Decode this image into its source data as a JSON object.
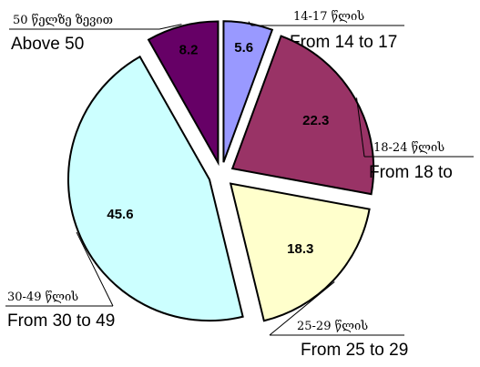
{
  "chart_data": {
    "type": "pie",
    "categories_ka": [
      "14-17 წლის",
      "18-24 წლის",
      "25-29 წლის",
      "30-49 წლის",
      "50 წელზე ზევით"
    ],
    "categories": [
      "From 14 to 17",
      "From 18 to",
      "From 25 to 29",
      "From 30 to 49",
      "Above 50"
    ],
    "values": [
      5.6,
      22.3,
      18.3,
      45.6,
      8.2
    ],
    "colors": [
      "#9999ff",
      "#993366",
      "#ffffcc",
      "#ccffff",
      "#660066"
    ],
    "label_colors": [
      "#000000",
      "#000000",
      "#000000",
      "#000000",
      "#000000"
    ]
  }
}
